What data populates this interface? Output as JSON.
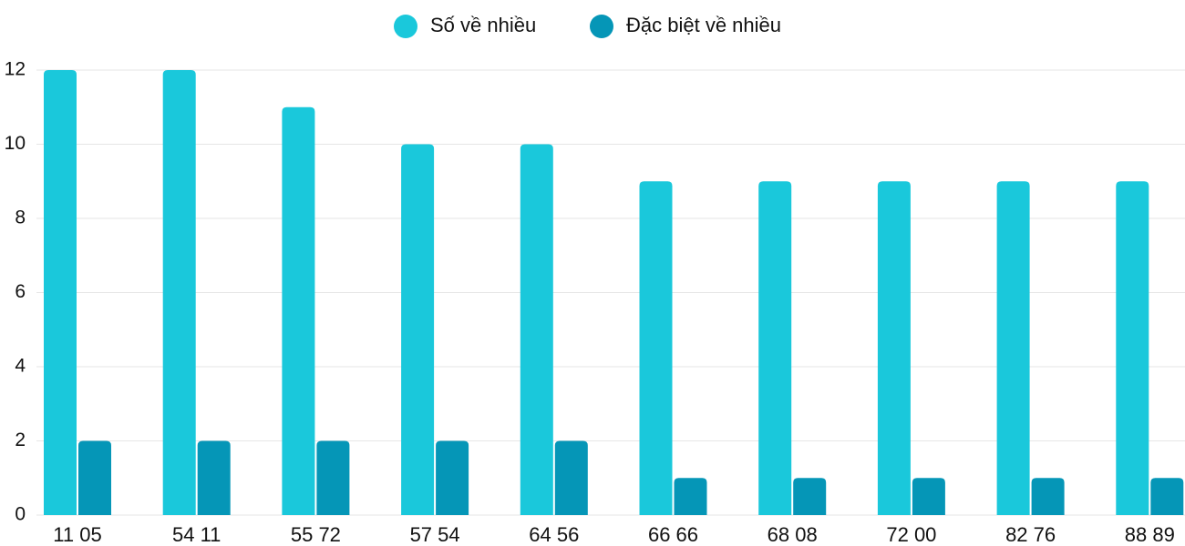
{
  "chart_data": {
    "type": "bar",
    "categories": [
      "11 05",
      "54 11",
      "55 72",
      "57 54",
      "64 56",
      "66 66",
      "68 08",
      "72 00",
      "82 76",
      "88 89"
    ],
    "series": [
      {
        "name": "Số về nhiều",
        "color": "#1ac8db",
        "values": [
          12,
          12,
          11,
          10,
          10,
          9,
          9,
          9,
          9,
          9
        ]
      },
      {
        "name": "Đặc biệt về nhiều",
        "color": "#0596b7",
        "values": [
          2,
          2,
          2,
          2,
          2,
          1,
          1,
          1,
          1,
          1
        ]
      }
    ],
    "ylim": [
      0,
      12
    ],
    "yticks": [
      0,
      2,
      4,
      6,
      8,
      10,
      12
    ],
    "grid": true,
    "legend": "top"
  }
}
